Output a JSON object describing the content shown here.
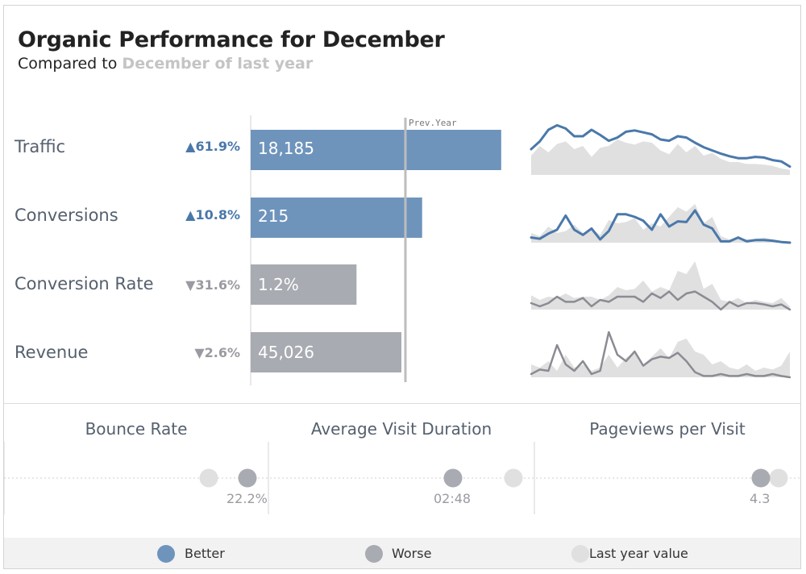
{
  "header": {
    "title": "Organic Performance for December",
    "subtitle_prefix": "Compared to",
    "subtitle_period": "December of last year"
  },
  "colors": {
    "better": "#6e94bc",
    "worse": "#a9abb2",
    "last_year": "#e0e0e0",
    "better_line": "#4a78aa",
    "worse_line": "#8a8c93",
    "up_arrow": "#4a78aa",
    "down_arrow": "#9a9aa2"
  },
  "chart_data": [
    {
      "type": "bar",
      "title": "",
      "reference_line_label": "Prev.Year",
      "categories": [
        "Traffic",
        "Conversions",
        "Conversion Rate",
        "Revenue"
      ],
      "series": [
        {
          "values_label": [
            "18,185",
            "215",
            "1.2%",
            "45,026"
          ]
        }
      ],
      "bars": [
        {
          "name": "Traffic",
          "change": "61.9%",
          "direction": "up",
          "value_label": "18,185",
          "relative_to_prev_year": 1.619,
          "status": "better"
        },
        {
          "name": "Conversions",
          "change": "10.8%",
          "direction": "up",
          "value_label": "215",
          "relative_to_prev_year": 1.108,
          "status": "better"
        },
        {
          "name": "Conversion Rate",
          "change": "31.6%",
          "direction": "down",
          "value_label": "1.2%",
          "relative_to_prev_year": 0.684,
          "status": "worse"
        },
        {
          "name": "Revenue",
          "change": "2.6%",
          "direction": "down",
          "value_label": "45,026",
          "relative_to_prev_year": 0.974,
          "status": "worse"
        }
      ]
    },
    {
      "type": "line",
      "title": "",
      "sparklines": [
        {
          "metric": "Traffic",
          "status": "better",
          "current": [
            0.4,
            0.52,
            0.7,
            0.77,
            0.72,
            0.6,
            0.6,
            0.7,
            0.62,
            0.53,
            0.58,
            0.67,
            0.69,
            0.66,
            0.63,
            0.55,
            0.53,
            0.6,
            0.58,
            0.5,
            0.43,
            0.38,
            0.33,
            0.29,
            0.26,
            0.26,
            0.28,
            0.27,
            0.23,
            0.21,
            0.13
          ],
          "last_year": [
            0.3,
            0.45,
            0.35,
            0.48,
            0.52,
            0.4,
            0.45,
            0.28,
            0.42,
            0.45,
            0.55,
            0.5,
            0.47,
            0.52,
            0.5,
            0.38,
            0.32,
            0.48,
            0.35,
            0.45,
            0.3,
            0.34,
            0.25,
            0.2,
            0.2,
            0.17,
            0.17,
            0.16,
            0.14,
            0.1,
            0.08
          ]
        },
        {
          "metric": "Conversions",
          "status": "better",
          "current": [
            0.08,
            0.06,
            0.14,
            0.2,
            0.42,
            0.2,
            0.12,
            0.22,
            0.05,
            0.18,
            0.44,
            0.44,
            0.4,
            0.34,
            0.2,
            0.44,
            0.25,
            0.33,
            0.32,
            0.5,
            0.28,
            0.22,
            0.02,
            0.02,
            0.08,
            0.02,
            0.04,
            0.04,
            0.03,
            0.01,
            0.0
          ],
          "last_year": [
            0.15,
            0.1,
            0.25,
            0.15,
            0.18,
            0.28,
            0.15,
            0.22,
            0.12,
            0.35,
            0.3,
            0.32,
            0.38,
            0.2,
            0.3,
            0.25,
            0.4,
            0.55,
            0.48,
            0.6,
            0.3,
            0.4,
            0.1,
            0.05,
            0.08,
            0.05,
            0.06,
            0.08,
            0.05,
            0.03,
            0.02
          ]
        },
        {
          "metric": "Conversion Rate",
          "status": "worse",
          "current": [
            0.1,
            0.05,
            0.1,
            0.2,
            0.12,
            0.12,
            0.18,
            0.05,
            0.15,
            0.12,
            0.2,
            0.2,
            0.2,
            0.12,
            0.25,
            0.18,
            0.28,
            0.15,
            0.25,
            0.28,
            0.2,
            0.12,
            0.0,
            0.12,
            0.05,
            0.1,
            0.1,
            0.08,
            0.05,
            0.08,
            0.0
          ],
          "last_year": [
            0.22,
            0.15,
            0.2,
            0.18,
            0.25,
            0.18,
            0.2,
            0.2,
            0.15,
            0.22,
            0.35,
            0.3,
            0.32,
            0.45,
            0.28,
            0.35,
            0.3,
            0.6,
            0.55,
            0.75,
            0.32,
            0.4,
            0.15,
            0.12,
            0.18,
            0.1,
            0.15,
            0.12,
            0.1,
            0.18,
            0.05
          ]
        },
        {
          "metric": "Revenue",
          "status": "worse",
          "current": [
            0.05,
            0.12,
            0.1,
            0.5,
            0.2,
            0.1,
            0.25,
            0.05,
            0.1,
            0.7,
            0.35,
            0.25,
            0.4,
            0.18,
            0.28,
            0.32,
            0.3,
            0.38,
            0.25,
            0.08,
            0.02,
            0.02,
            0.05,
            0.02,
            0.02,
            0.05,
            0.02,
            0.02,
            0.05,
            0.02,
            0.0
          ],
          "last_year": [
            0.2,
            0.15,
            0.25,
            0.1,
            0.35,
            0.15,
            0.2,
            0.1,
            0.15,
            0.35,
            0.15,
            0.3,
            0.4,
            0.2,
            0.32,
            0.45,
            0.3,
            0.55,
            0.6,
            0.4,
            0.35,
            0.2,
            0.25,
            0.15,
            0.12,
            0.2,
            0.1,
            0.15,
            0.12,
            0.18,
            0.4
          ]
        }
      ]
    },
    {
      "type": "scatter",
      "title": "",
      "kpis": [
        {
          "title": "Bounce Rate",
          "value_label": "22.2%",
          "status": "worse"
        },
        {
          "title": "Average Visit Duration",
          "value_label": "02:48",
          "status": "worse"
        },
        {
          "title": "Pageviews per Visit",
          "value_label": "4.3",
          "status": "worse"
        }
      ]
    }
  ],
  "legend": {
    "better": "Better",
    "worse": "Worse",
    "last_year": "Last year value"
  }
}
